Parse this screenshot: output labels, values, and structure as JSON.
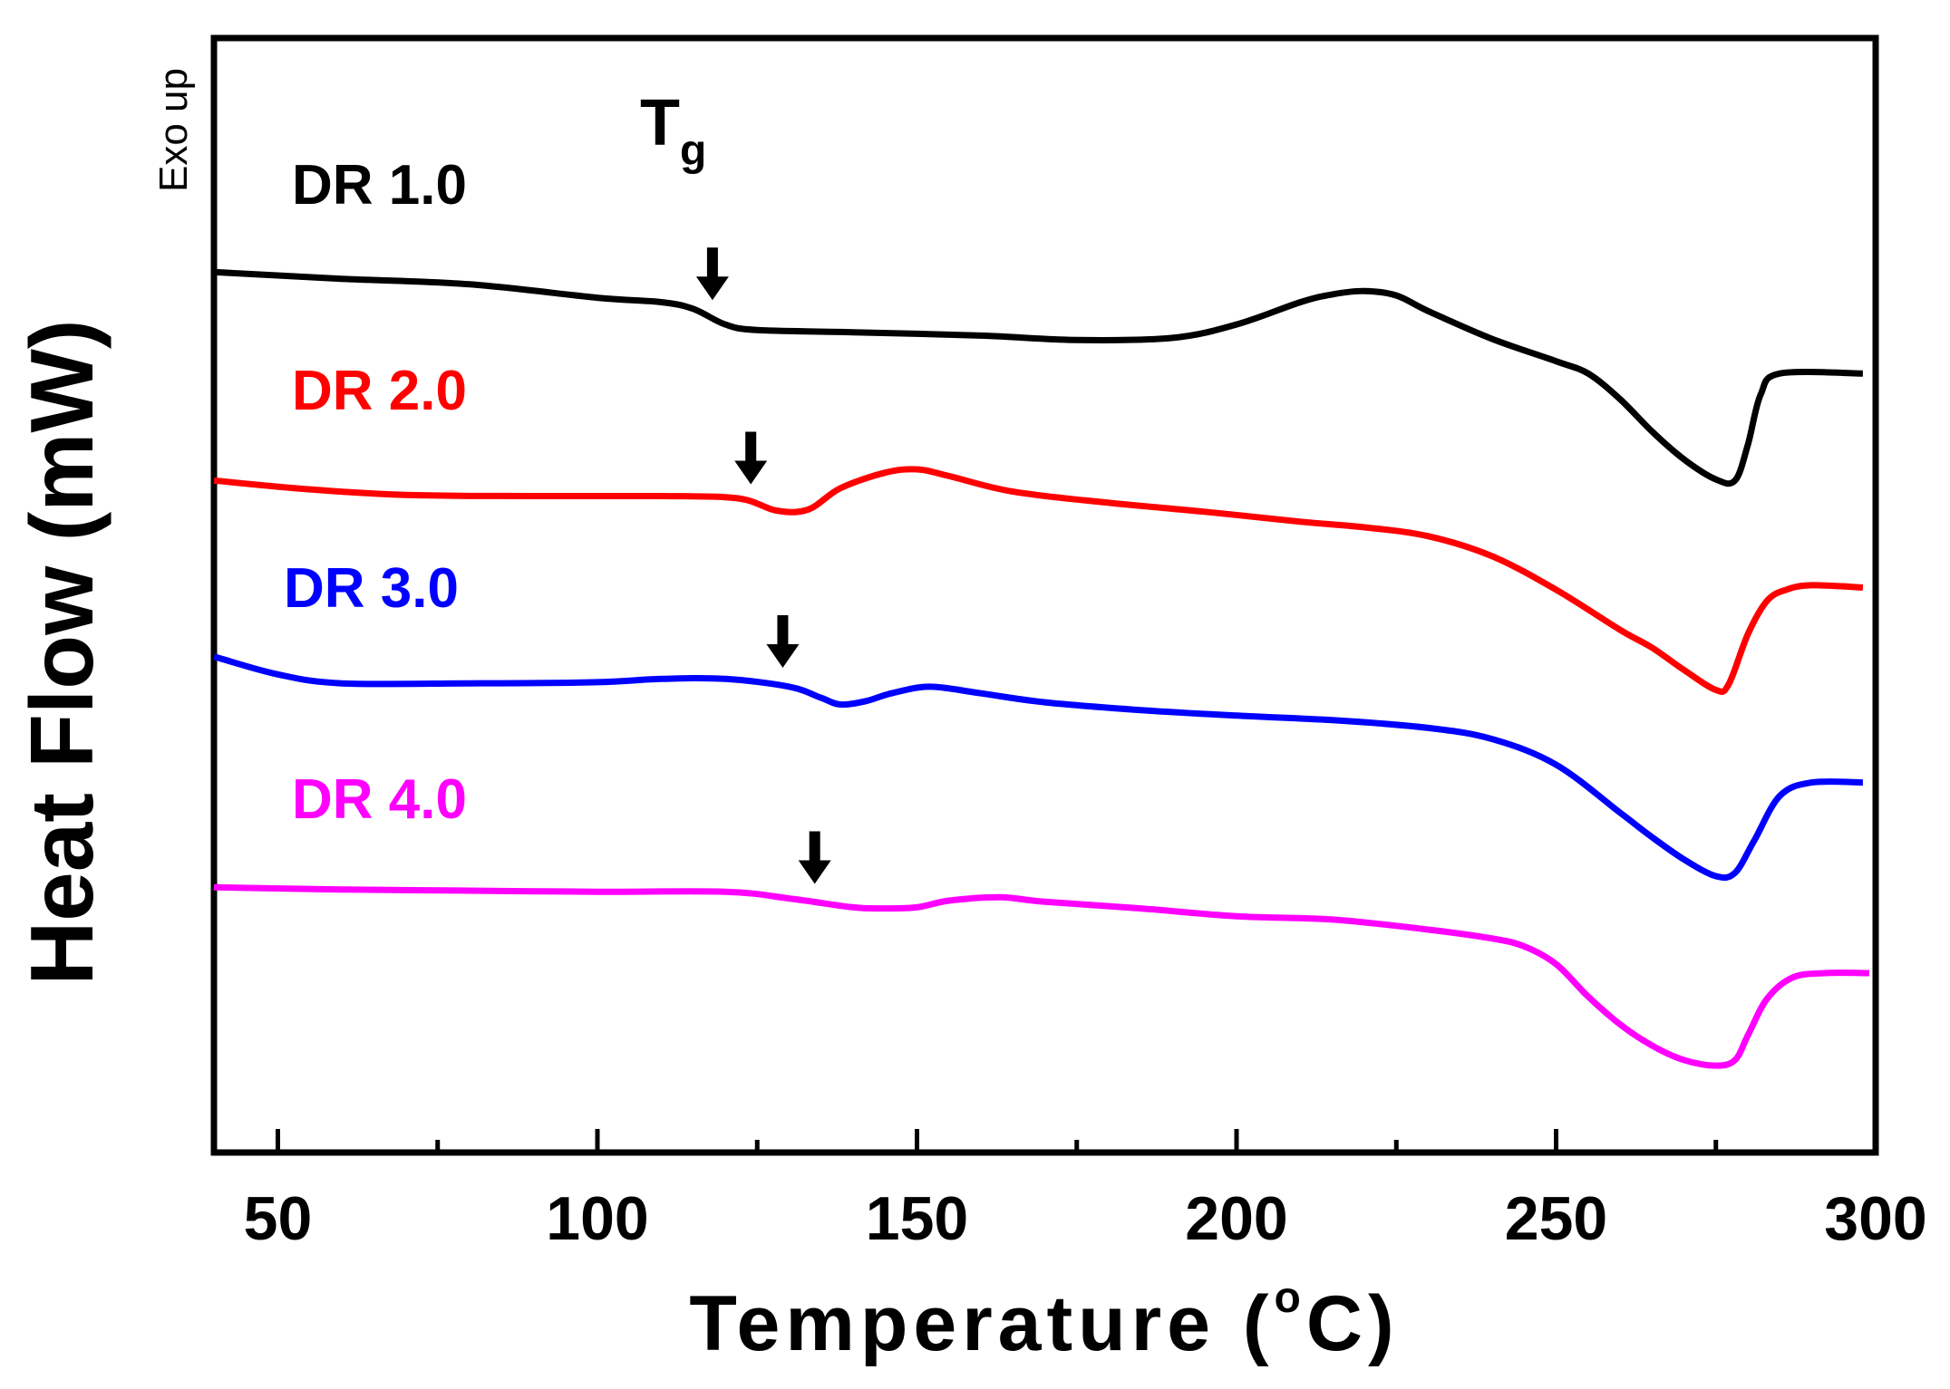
{
  "chart_data": {
    "type": "line",
    "title": "",
    "xlabel": "Temperature (°C)",
    "xlabel_parts": {
      "prefix": "Temperature (",
      "degree": "o",
      "suffix": "C)"
    },
    "ylabel": "Heat Flow (mW)",
    "ylabel_note": "Exo up",
    "xlim": [
      40,
      300
    ],
    "x_ticks": [
      50,
      100,
      150,
      200,
      250,
      300
    ],
    "ylim": [
      0,
      100
    ],
    "grid": false,
    "annotation": {
      "text": "T",
      "subscript": "g"
    },
    "series": [
      {
        "name": "DR 1.0",
        "color": "#000000",
        "tg": 118,
        "points": [
          [
            40,
            79
          ],
          [
            60,
            78.4
          ],
          [
            80,
            77.9
          ],
          [
            100,
            76.7
          ],
          [
            110,
            76.3
          ],
          [
            115,
            75.7
          ],
          [
            120,
            74.3
          ],
          [
            125,
            73.8
          ],
          [
            140,
            73.6
          ],
          [
            160,
            73.3
          ],
          [
            175,
            72.9
          ],
          [
            190,
            73.1
          ],
          [
            200,
            74.3
          ],
          [
            210,
            76.3
          ],
          [
            215,
            77.0
          ],
          [
            220,
            77.3
          ],
          [
            225,
            76.9
          ],
          [
            230,
            75.5
          ],
          [
            240,
            73.0
          ],
          [
            250,
            71.0
          ],
          [
            255,
            69.9
          ],
          [
            260,
            67.6
          ],
          [
            265,
            64.7
          ],
          [
            270,
            62.2
          ],
          [
            275,
            60.4
          ],
          [
            278,
            60.3
          ],
          [
            280,
            63.5
          ],
          [
            282,
            68.0
          ],
          [
            285,
            69.9
          ],
          [
            298,
            69.9
          ]
        ]
      },
      {
        "name": "DR 2.0",
        "color": "#ff0000",
        "tg": 124,
        "points": [
          [
            40,
            60.3
          ],
          [
            55,
            59.5
          ],
          [
            70,
            59.0
          ],
          [
            90,
            58.9
          ],
          [
            110,
            58.9
          ],
          [
            122,
            58.7
          ],
          [
            128,
            57.6
          ],
          [
            133,
            57.7
          ],
          [
            138,
            59.6
          ],
          [
            145,
            61.0
          ],
          [
            150,
            61.3
          ],
          [
            155,
            60.7
          ],
          [
            165,
            59.3
          ],
          [
            180,
            58.3
          ],
          [
            195,
            57.5
          ],
          [
            210,
            56.6
          ],
          [
            220,
            56.1
          ],
          [
            230,
            55.3
          ],
          [
            240,
            53.5
          ],
          [
            250,
            50.5
          ],
          [
            260,
            46.9
          ],
          [
            265,
            45.3
          ],
          [
            270,
            43.3
          ],
          [
            275,
            41.5
          ],
          [
            277,
            42.0
          ],
          [
            280,
            46.5
          ],
          [
            283,
            49.5
          ],
          [
            286,
            50.5
          ],
          [
            290,
            50.9
          ],
          [
            298,
            50.7
          ]
        ]
      },
      {
        "name": "DR 3.0",
        "color": "#0000ff",
        "tg": 129,
        "points": [
          [
            40,
            44.5
          ],
          [
            50,
            42.9
          ],
          [
            60,
            42.1
          ],
          [
            80,
            42.1
          ],
          [
            100,
            42.2
          ],
          [
            110,
            42.5
          ],
          [
            120,
            42.5
          ],
          [
            130,
            41.8
          ],
          [
            135,
            40.8
          ],
          [
            138,
            40.2
          ],
          [
            142,
            40.5
          ],
          [
            146,
            41.2
          ],
          [
            152,
            41.8
          ],
          [
            160,
            41.2
          ],
          [
            170,
            40.4
          ],
          [
            185,
            39.7
          ],
          [
            200,
            39.2
          ],
          [
            215,
            38.8
          ],
          [
            230,
            38.1
          ],
          [
            240,
            37.1
          ],
          [
            250,
            34.8
          ],
          [
            260,
            30.5
          ],
          [
            265,
            28.3
          ],
          [
            270,
            26.3
          ],
          [
            275,
            24.8
          ],
          [
            278,
            25.1
          ],
          [
            281,
            28.0
          ],
          [
            285,
            32.0
          ],
          [
            290,
            33.2
          ],
          [
            298,
            33.2
          ]
        ]
      },
      {
        "name": "DR 4.0",
        "color": "#ff00ff",
        "tg": 134,
        "points": [
          [
            40,
            23.8
          ],
          [
            60,
            23.6
          ],
          [
            80,
            23.5
          ],
          [
            100,
            23.4
          ],
          [
            120,
            23.4
          ],
          [
            130,
            22.8
          ],
          [
            140,
            22.0
          ],
          [
            145,
            21.9
          ],
          [
            150,
            22.0
          ],
          [
            155,
            22.6
          ],
          [
            163,
            22.9
          ],
          [
            170,
            22.5
          ],
          [
            185,
            21.9
          ],
          [
            200,
            21.2
          ],
          [
            215,
            20.9
          ],
          [
            230,
            20.0
          ],
          [
            240,
            19.2
          ],
          [
            245,
            18.5
          ],
          [
            250,
            16.9
          ],
          [
            255,
            14.0
          ],
          [
            260,
            11.5
          ],
          [
            265,
            9.6
          ],
          [
            270,
            8.3
          ],
          [
            275,
            7.8
          ],
          [
            278,
            8.3
          ],
          [
            280,
            10.5
          ],
          [
            283,
            13.8
          ],
          [
            287,
            15.7
          ],
          [
            292,
            16.1
          ],
          [
            299,
            16.1
          ]
        ]
      }
    ]
  }
}
